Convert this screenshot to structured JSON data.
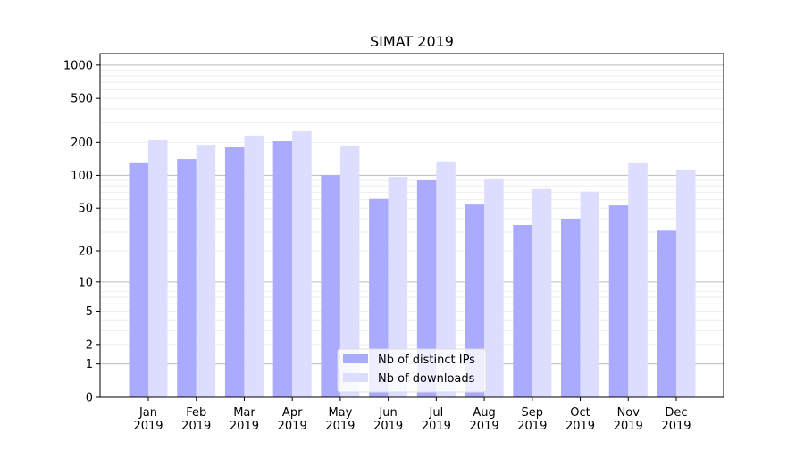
{
  "chart_data": {
    "type": "bar",
    "title": "SIMAT 2019",
    "xlabel": "",
    "ylabel": "",
    "yscale": "symlog",
    "ylim": [
      0,
      1270
    ],
    "yticks": [
      0,
      1,
      2,
      5,
      10,
      20,
      50,
      100,
      200,
      500,
      1000
    ],
    "grid": true,
    "legend_placement": "lower center",
    "categories": [
      "Jan\n2019",
      "Feb\n2019",
      "Mar\n2019",
      "Apr\n2019",
      "May\n2019",
      "Jun\n2019",
      "Jul\n2019",
      "Aug\n2019",
      "Sep\n2019",
      "Oct\n2019",
      "Nov\n2019",
      "Dec\n2019"
    ],
    "series": [
      {
        "name": "Nb of distinct IPs",
        "color": "#aaaaff",
        "values": [
          129,
          141,
          180,
          205,
          100,
          61,
          90,
          54,
          35,
          40,
          53,
          31
        ]
      },
      {
        "name": "Nb of downloads",
        "color": "#ddddff",
        "values": [
          209,
          190,
          230,
          252,
          187,
          97,
          134,
          92,
          75,
          71,
          129,
          113
        ]
      }
    ]
  }
}
